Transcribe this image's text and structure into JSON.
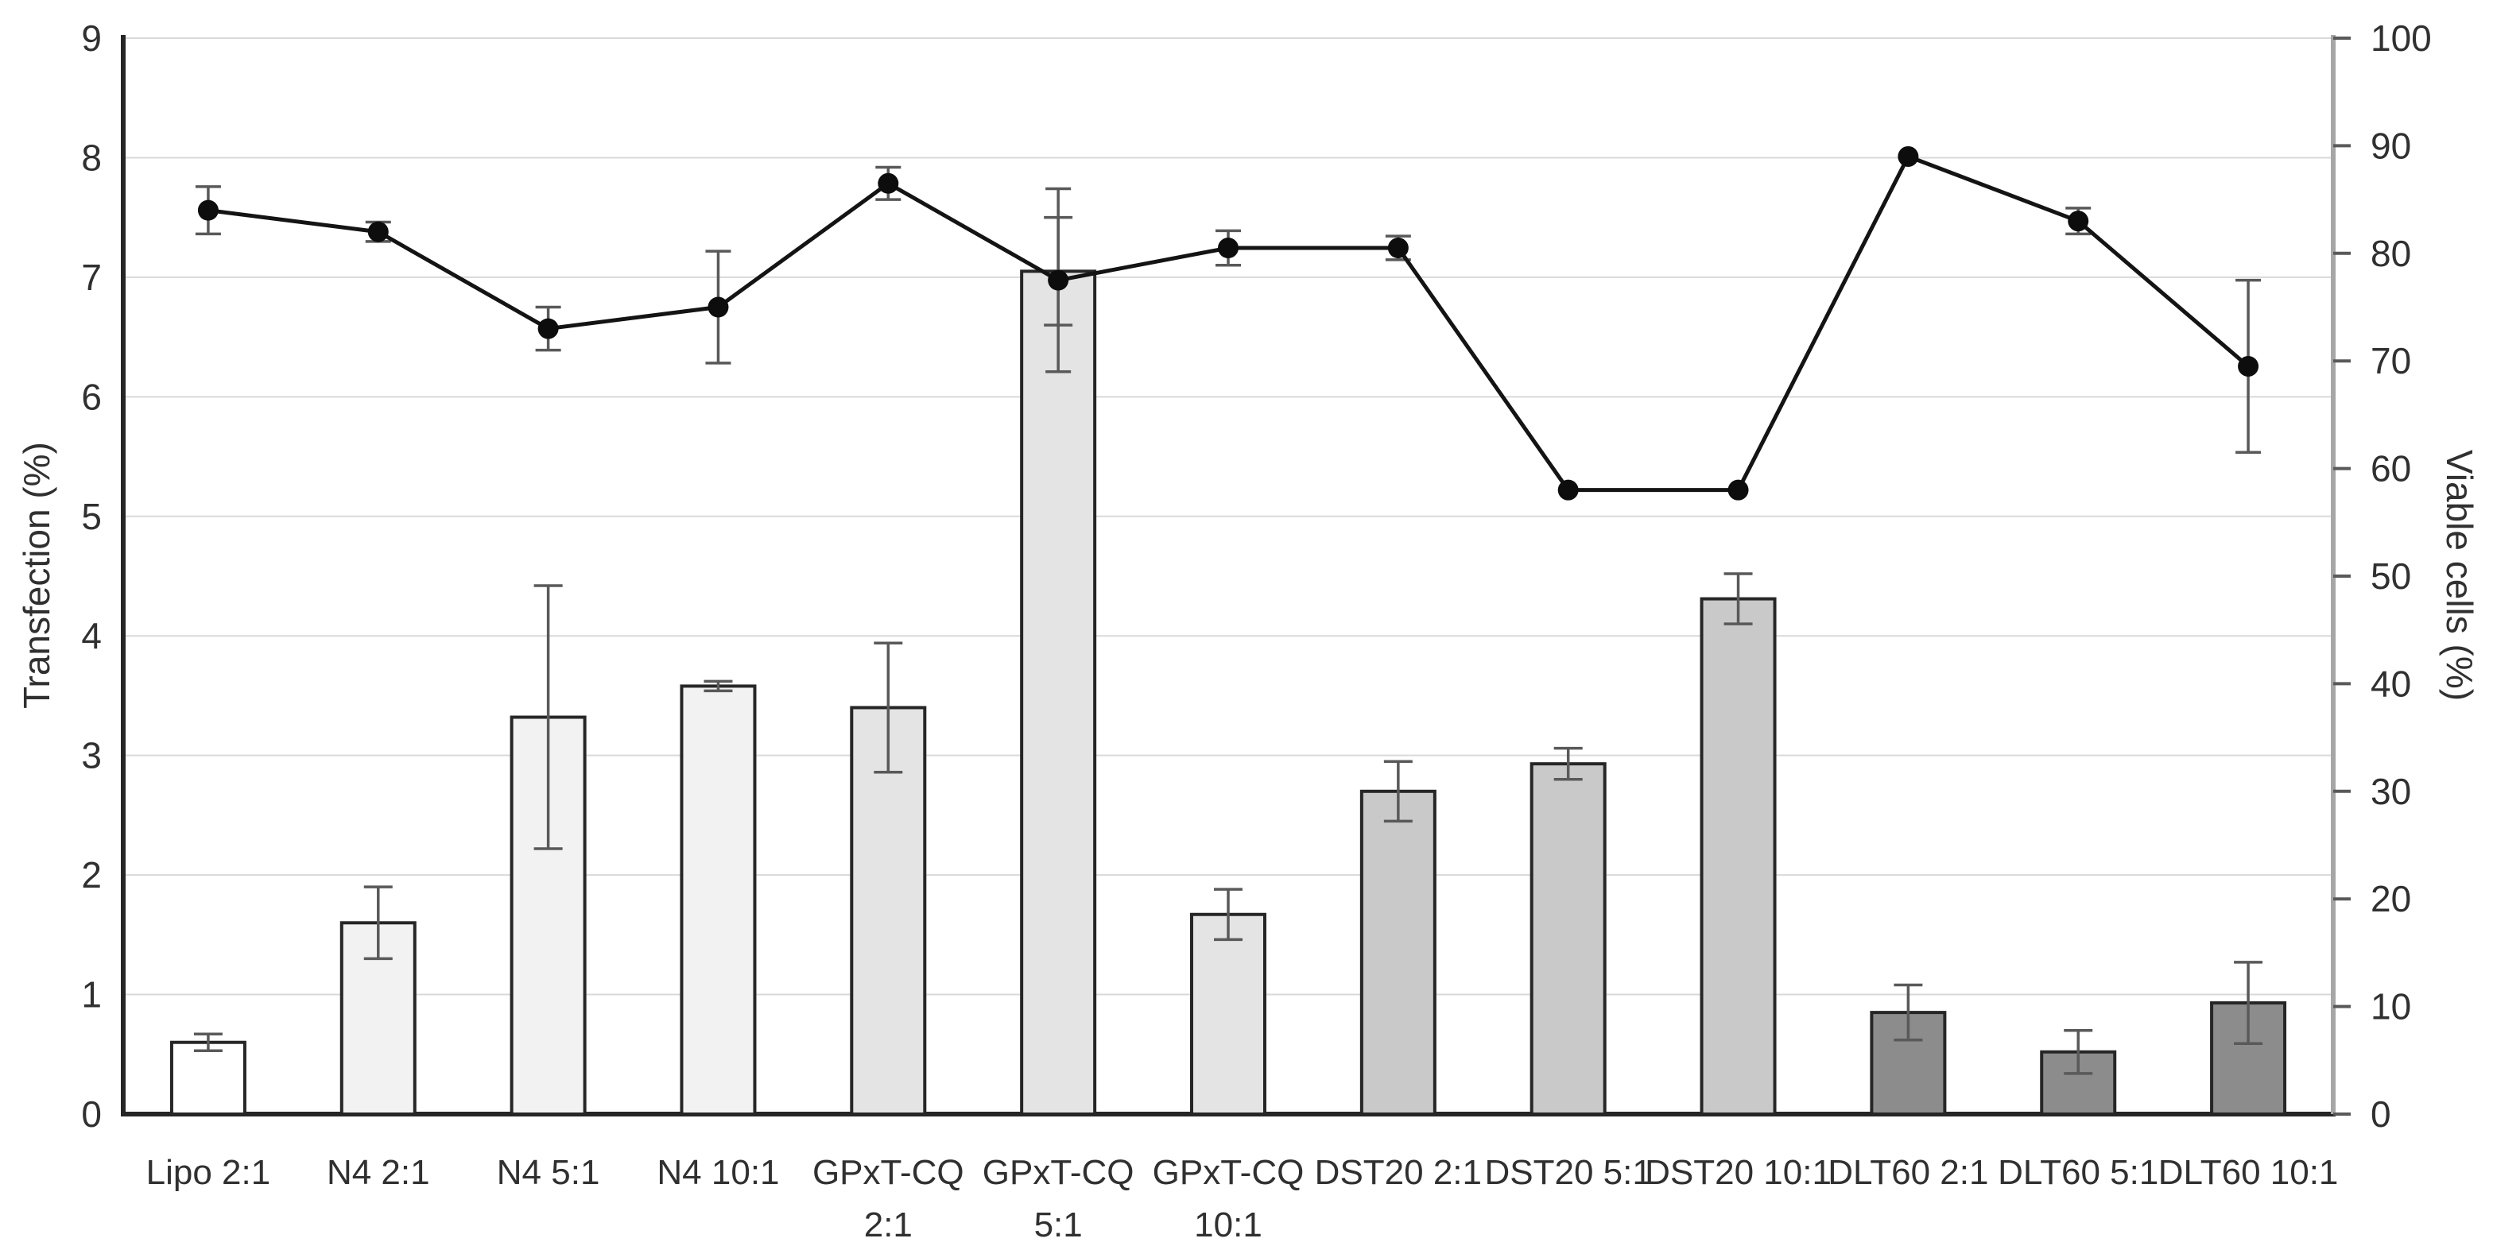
{
  "chart_data": {
    "type": "combo-bar-line",
    "title": "",
    "categories": [
      "Lipo 2:1",
      "N4 2:1",
      "N4 5:1",
      "N4 10:1",
      "GPxT-CQ\n2:1",
      "GPxT-CQ\n5:1",
      "GPxT-CQ\n10:1",
      "DST20 2:1",
      "DST20 5:1",
      "DST20 10:1",
      "DLT60 2:1",
      "DLT60 5:1",
      "DLT60 10:1"
    ],
    "series": [
      {
        "name": "Transfection (%)",
        "type": "bar",
        "axis": "left",
        "values": [
          0.6,
          1.6,
          3.32,
          3.58,
          3.4,
          7.05,
          1.67,
          2.7,
          2.93,
          4.31,
          0.85,
          0.52,
          0.93
        ],
        "errors": [
          0.07,
          0.3,
          1.1,
          0.04,
          0.54,
          0.45,
          0.21,
          0.25,
          0.13,
          0.21,
          0.23,
          0.18,
          0.34
        ],
        "bar_fills": [
          "#ffffff",
          "#f2f2f2",
          "#f2f2f2",
          "#f2f2f2",
          "#e4e4e4",
          "#e4e4e4",
          "#e4e4e4",
          "#c9c9c9",
          "#c9c9c9",
          "#c9c9c9",
          "#8c8c8c",
          "#8c8c8c",
          "#8c8c8c"
        ]
      },
      {
        "name": "Viable cells (%)",
        "type": "line",
        "axis": "right",
        "values": [
          84,
          82,
          73,
          75,
          86.5,
          77.5,
          80.5,
          80.5,
          58,
          58,
          89,
          83,
          69.5
        ],
        "errors": [
          2.2,
          0.9,
          2.0,
          5.2,
          1.5,
          8.5,
          1.6,
          1.1,
          0.3,
          0.3,
          0.4,
          1.2,
          8.0
        ]
      }
    ],
    "left_axis": {
      "label": "Transfection (%)",
      "min": 0,
      "max": 9,
      "step": 1
    },
    "right_axis": {
      "label": "Viable cells (%)",
      "min": 0,
      "max": 100,
      "step": 10
    },
    "grid": true,
    "legend": "none"
  },
  "colors": {
    "background": "#ffffff",
    "gridline": "#d9d9d9",
    "axis_left": "#262626",
    "axis_bottom": "#262626",
    "axis_right": "#a6a6a6",
    "tick_mark": "#595959",
    "tick_label": "#303030",
    "bar_stroke": "#262626",
    "error_bar": "#595959",
    "line_series": "#141414",
    "marker": "#0d0d0d"
  }
}
